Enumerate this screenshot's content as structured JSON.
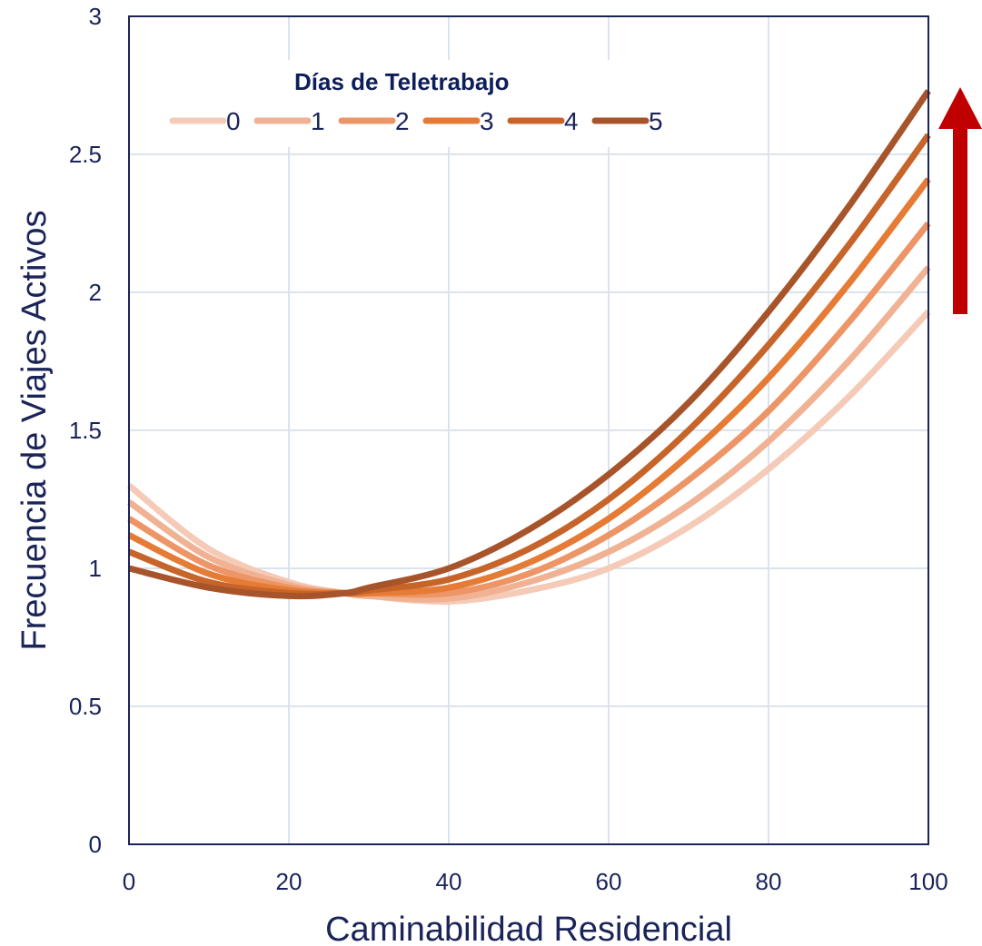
{
  "chart_data": {
    "type": "line",
    "title": "",
    "xlabel": "Caminabilidad Residencial",
    "ylabel": "Frecuencia de Viajes Activos",
    "xlim": [
      0,
      100
    ],
    "ylim": [
      0,
      3
    ],
    "x_ticks": [
      "0",
      "20",
      "40",
      "60",
      "80",
      "100"
    ],
    "y_ticks": [
      "0",
      "0.5",
      "1",
      "1.5",
      "2",
      "2.5",
      "3"
    ],
    "grid": true,
    "legend_title": "Días de Teletrabajo",
    "legend_position": "top-left",
    "x": [
      0,
      10,
      20,
      27,
      30,
      40,
      50,
      60,
      70,
      80,
      90,
      100
    ],
    "series": [
      {
        "name": "0",
        "color": "#f5cbb8",
        "values": [
          1.3,
          1.07,
          0.95,
          0.91,
          0.9,
          0.88,
          0.92,
          1.0,
          1.15,
          1.36,
          1.62,
          1.93
        ]
      },
      {
        "name": "1",
        "color": "#f0b293",
        "values": [
          1.24,
          1.04,
          0.94,
          0.91,
          0.9,
          0.89,
          0.95,
          1.06,
          1.23,
          1.46,
          1.75,
          2.09
        ]
      },
      {
        "name": "2",
        "color": "#ed9566",
        "values": [
          1.18,
          1.01,
          0.93,
          0.91,
          0.91,
          0.91,
          0.98,
          1.12,
          1.32,
          1.57,
          1.89,
          2.25
        ]
      },
      {
        "name": "3",
        "color": "#e57b35",
        "values": [
          1.12,
          0.98,
          0.92,
          0.91,
          0.91,
          0.93,
          1.02,
          1.18,
          1.41,
          1.69,
          2.03,
          2.41
        ]
      },
      {
        "name": "4",
        "color": "#c76429",
        "values": [
          1.06,
          0.95,
          0.91,
          0.91,
          0.92,
          0.96,
          1.07,
          1.25,
          1.5,
          1.81,
          2.17,
          2.57
        ]
      },
      {
        "name": "5",
        "color": "#a8542a",
        "values": [
          1.0,
          0.93,
          0.9,
          0.91,
          0.93,
          1.0,
          1.14,
          1.34,
          1.6,
          1.93,
          2.31,
          2.73
        ]
      }
    ],
    "annotation_arrow_color": "#c00000"
  }
}
